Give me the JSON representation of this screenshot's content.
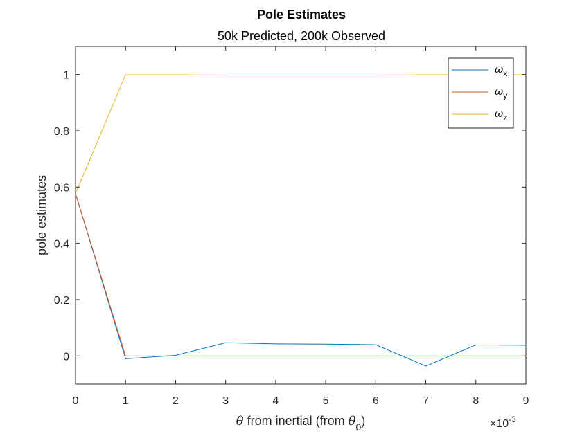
{
  "chart_data": {
    "type": "line",
    "title": "Pole Estimates",
    "subtitle": "50k Predicted, 200k Observed",
    "xlabel": {
      "theta_symbol": "θ",
      "middle_text": " from inertial (from ",
      "theta0_symbol": "θ",
      "theta0_subscript": "0",
      "closing": ")"
    },
    "ylabel": "pole estimates",
    "x_multiplier": {
      "prefix": "×10",
      "exponent": "-3"
    },
    "xlim": [
      0,
      0.009
    ],
    "ylim": [
      -0.1,
      1.1
    ],
    "xticks": [
      0,
      0.001,
      0.002,
      0.003,
      0.004,
      0.005,
      0.006,
      0.007,
      0.008,
      0.009
    ],
    "xtick_labels": [
      "0",
      "1",
      "2",
      "3",
      "4",
      "5",
      "6",
      "7",
      "8",
      "9"
    ],
    "yticks": [
      0,
      0.2,
      0.4,
      0.6,
      0.8,
      1.0
    ],
    "ytick_labels": [
      "0",
      "0.2",
      "0.4",
      "0.6",
      "0.8",
      "1"
    ],
    "x": [
      0,
      0.001,
      0.002,
      0.003,
      0.004,
      0.005,
      0.006,
      0.007,
      0.008,
      0.009
    ],
    "series": [
      {
        "name": "ω",
        "subscript": "x",
        "color": "#0072BD",
        "values": [
          0.577,
          -0.01,
          0.002,
          0.047,
          0.043,
          0.042,
          0.04,
          -0.036,
          0.039,
          0.038
        ]
      },
      {
        "name": "ω",
        "subscript": "y",
        "color": "#D95319",
        "values": [
          0.577,
          0.0,
          0.0,
          0.0,
          0.0,
          0.0,
          0.0,
          0.0,
          0.0,
          0.0
        ]
      },
      {
        "name": "ω",
        "subscript": "z",
        "color": "#EDB120",
        "values": [
          0.577,
          0.999,
          0.999,
          0.998,
          0.998,
          0.998,
          0.998,
          0.999,
          0.999,
          0.999
        ]
      }
    ],
    "grid": false,
    "legend_position": "top-right",
    "box": true
  }
}
